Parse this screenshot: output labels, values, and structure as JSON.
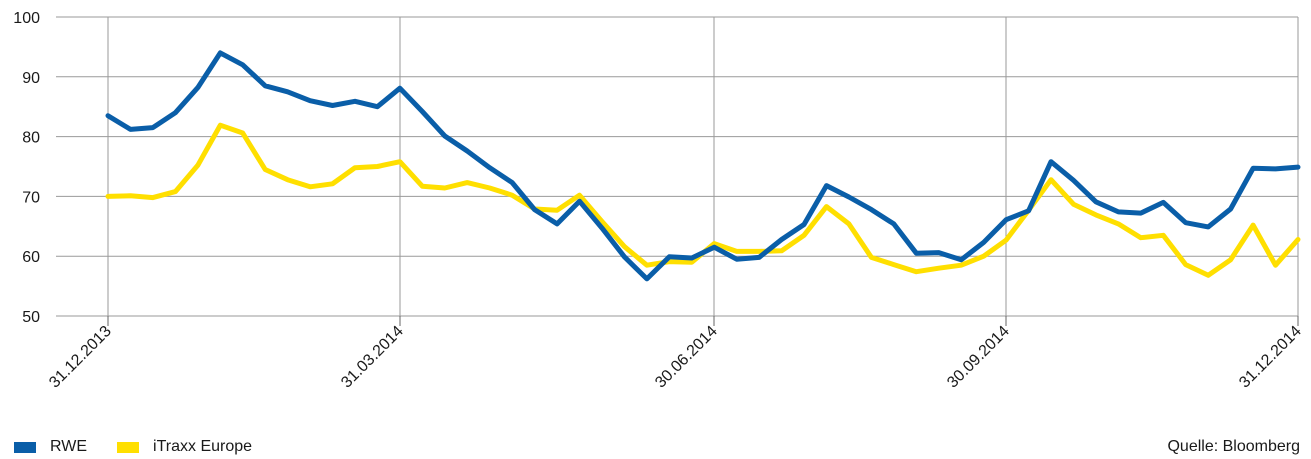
{
  "chart_data": {
    "type": "line",
    "title": "",
    "xlabel": "",
    "ylabel": "",
    "ylim": [
      50,
      100
    ],
    "yticks": [
      50,
      60,
      70,
      80,
      90,
      100
    ],
    "x_tick_labels": [
      "31.12.2013",
      "31.03.2014",
      "30.06.2014",
      "30.09.2014",
      "31.12.2014"
    ],
    "grid": true,
    "legend_placement": "bottom-left",
    "series": [
      {
        "name": "RWE",
        "color": "#0a5ea8",
        "values": [
          83.5,
          81.2,
          81.5,
          84,
          88.2,
          94,
          92,
          88.5,
          87.5,
          86,
          85.2,
          85.9,
          85,
          88.1,
          84.2,
          80.1,
          77.6,
          74.8,
          72.3,
          67.8,
          65.4,
          69.2,
          64.7,
          59.9,
          56.2,
          59.9,
          59.7,
          61.5,
          59.5,
          59.8,
          62.8,
          65.3,
          71.8,
          69.9,
          67.8,
          65.4,
          60.5,
          60.6,
          59.4,
          62.3,
          66.1,
          67.6,
          75.8,
          72.7,
          69.1,
          67.4,
          67.2,
          69.0,
          65.6,
          64.9,
          67.9,
          74.7,
          74.6,
          74.9
        ]
      },
      {
        "name": "iTraxx Europe",
        "color": "#ffdf00",
        "values": [
          70,
          70.1,
          69.8,
          70.8,
          75.2,
          81.9,
          80.6,
          74.5,
          72.8,
          71.6,
          72.1,
          74.8,
          75.0,
          75.8,
          71.7,
          71.4,
          72.3,
          71.4,
          70.2,
          67.9,
          67.7,
          70.2,
          65.8,
          61.6,
          58.5,
          59.1,
          59.0,
          62.1,
          60.8,
          60.8,
          60.9,
          63.5,
          68.3,
          65.4,
          59.8,
          58.6,
          57.4,
          58.0,
          58.5,
          60.0,
          62.7,
          67.7,
          72.8,
          68.7,
          66.9,
          65.4,
          63.1,
          63.5,
          58.6,
          56.8,
          59.4,
          65.2,
          58.5,
          62.8
        ]
      }
    ],
    "source": "Quelle: Bloomberg"
  }
}
